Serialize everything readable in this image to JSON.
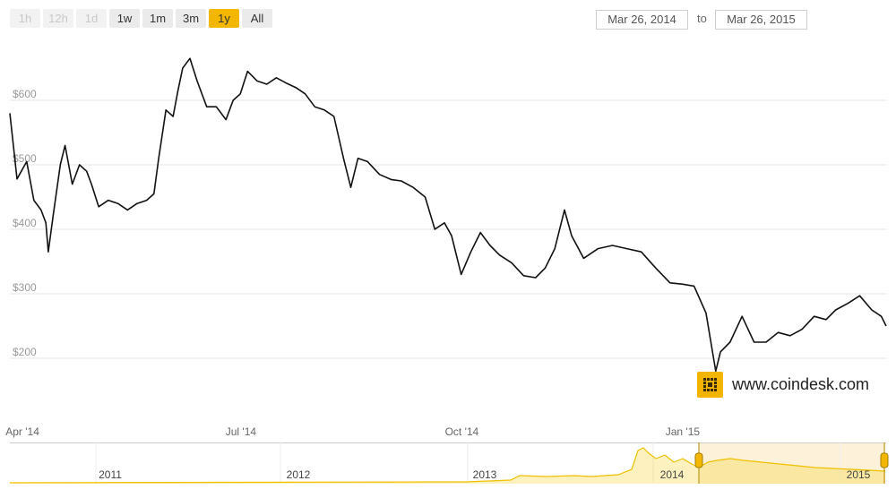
{
  "range_selector": {
    "buttons": [
      {
        "label": "1h",
        "state": "disabled"
      },
      {
        "label": "12h",
        "state": "disabled"
      },
      {
        "label": "1d",
        "state": "disabled"
      },
      {
        "label": "1w",
        "state": "enabled"
      },
      {
        "label": "1m",
        "state": "enabled"
      },
      {
        "label": "3m",
        "state": "enabled"
      },
      {
        "label": "1y",
        "state": "active"
      },
      {
        "label": "All",
        "state": "enabled"
      }
    ],
    "accent_color": "#f3b700"
  },
  "date_range": {
    "from": "Mar 26, 2014",
    "separator": "to",
    "to": "Mar 26, 2015"
  },
  "watermark": {
    "text": "www.coindesk.com",
    "icon": "coindesk-logo-icon",
    "color": "#f3b400"
  },
  "chart_data": {
    "type": "line",
    "series": [
      {
        "x": [
          "2014-03-26",
          "2014-03-29",
          "2014-04-02",
          "2014-04-05",
          "2014-04-08",
          "2014-04-10",
          "2014-04-11",
          "2014-04-13",
          "2014-04-16",
          "2014-04-18",
          "2014-04-21",
          "2014-04-24",
          "2014-04-27",
          "2014-04-29",
          "2014-05-02",
          "2014-05-06",
          "2014-05-10",
          "2014-05-14",
          "2014-05-18",
          "2014-05-22",
          "2014-05-25",
          "2014-05-27",
          "2014-05-30",
          "2014-06-02",
          "2014-06-04",
          "2014-06-06",
          "2014-06-09",
          "2014-06-12",
          "2014-06-16",
          "2014-06-20",
          "2014-06-24",
          "2014-06-27",
          "2014-06-30",
          "2014-07-03",
          "2014-07-07",
          "2014-07-11",
          "2014-07-15",
          "2014-07-19",
          "2014-07-23",
          "2014-07-27",
          "2014-07-31",
          "2014-08-04",
          "2014-08-08",
          "2014-08-12",
          "2014-08-15",
          "2014-08-18",
          "2014-08-22",
          "2014-08-27",
          "2014-09-01",
          "2014-09-05",
          "2014-09-10",
          "2014-09-15",
          "2014-09-19",
          "2014-09-23",
          "2014-09-26",
          "2014-09-30",
          "2014-10-04",
          "2014-10-08",
          "2014-10-12",
          "2014-10-16",
          "2014-10-21",
          "2014-10-26",
          "2014-10-31",
          "2014-11-04",
          "2014-11-08",
          "2014-11-12",
          "2014-11-15",
          "2014-11-20",
          "2014-11-26",
          "2014-12-02",
          "2014-12-08",
          "2014-12-14",
          "2014-12-20",
          "2014-12-26",
          "2014-12-31",
          "2015-01-05",
          "2015-01-10",
          "2015-01-14",
          "2015-01-16",
          "2015-01-20",
          "2015-01-25",
          "2015-01-30",
          "2015-02-04",
          "2015-02-09",
          "2015-02-14",
          "2015-02-19",
          "2015-02-24",
          "2015-03-01",
          "2015-03-05",
          "2015-03-10",
          "2015-03-15",
          "2015-03-20",
          "2015-03-24",
          "2015-03-26"
        ],
        "y": [
          580,
          478,
          505,
          445,
          430,
          410,
          365,
          420,
          500,
          530,
          470,
          500,
          490,
          470,
          435,
          445,
          440,
          430,
          440,
          445,
          455,
          510,
          585,
          575,
          615,
          650,
          665,
          630,
          590,
          590,
          570,
          600,
          610,
          645,
          630,
          625,
          635,
          627,
          620,
          610,
          590,
          585,
          575,
          510,
          465,
          510,
          505,
          485,
          477,
          475,
          465,
          450,
          400,
          410,
          390,
          330,
          365,
          395,
          375,
          360,
          348,
          328,
          325,
          340,
          370,
          430,
          390,
          355,
          370,
          375,
          370,
          365,
          340,
          317,
          315,
          312,
          270,
          180,
          210,
          225,
          265,
          225,
          225,
          240,
          235,
          245,
          265,
          260,
          275,
          285,
          297,
          275,
          265,
          250
        ]
      }
    ],
    "ylim": [
      150,
      680
    ],
    "yticks": [
      200,
      300,
      400,
      500,
      600
    ],
    "ytick_labels": [
      "$200",
      "$300",
      "$400",
      "$500",
      "$600"
    ],
    "xticks": [
      "2014-04-01",
      "2014-07-01",
      "2014-10-01",
      "2015-01-01"
    ],
    "xtick_labels": [
      "Apr '14",
      "Jul '14",
      "Oct '14",
      "Jan '15"
    ],
    "line_color": "#111111",
    "grid": true,
    "navigator": {
      "year_labels": [
        "2011",
        "2012",
        "2013",
        "2014",
        "2015"
      ],
      "selection_from": "Mar 26, 2014",
      "selection_to": "Mar 26, 2015",
      "area_color": "#f5c900",
      "selection_fill": "#fdf2d9"
    }
  }
}
